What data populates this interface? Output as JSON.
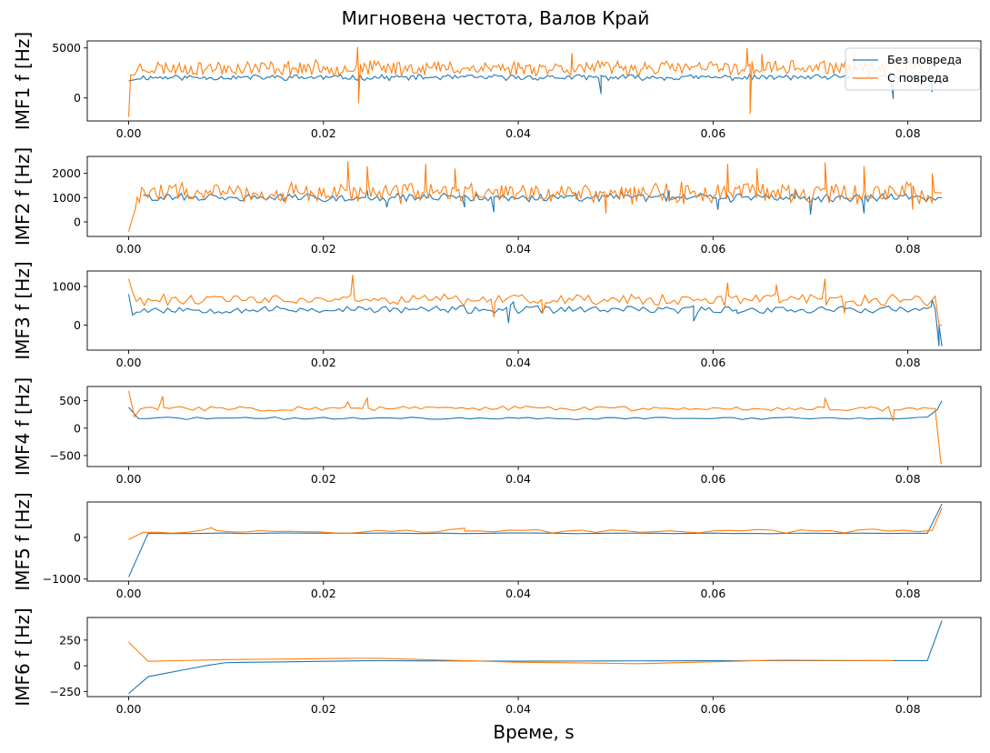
{
  "figure": {
    "title": "Мигновена честота, Валов Край",
    "xlabel": "Време, s",
    "legend": {
      "placement": "top-right",
      "entries": [
        "Без повреда",
        "С повреда"
      ]
    },
    "colors": {
      "series_a": "#1f77b4",
      "series_b": "#ff7f0e"
    }
  },
  "chart_data": [
    {
      "type": "line",
      "ylabel": "IMF1 f [Hz]",
      "xlim": [
        -0.00425,
        0.0875
      ],
      "ylim": [
        -2300,
        5700
      ],
      "xticks": [
        "0.00",
        "0.02",
        "0.04",
        "0.06",
        "0.08"
      ],
      "yticks": [
        0,
        5000
      ],
      "series": [
        {
          "name": "Без повреда",
          "base": 2050,
          "noise": 250,
          "seed": 11,
          "step": 0.00025,
          "points": [
            [
              0,
              1700
            ],
            [
              0.001,
              1900
            ],
            [
              0.0835,
              2000
            ]
          ],
          "spikes": [
            [
              0.0485,
              400
            ],
            [
              0.0785,
              -100
            ],
            [
              0.0825,
              600
            ]
          ]
        },
        {
          "name": "С повреда",
          "base": 3000,
          "noise": 650,
          "seed": 23,
          "step": 0.0002,
          "points": [
            [
              0,
              -1900
            ],
            [
              0.0001,
              2300
            ],
            [
              0.0835,
              2600
            ]
          ],
          "spikes": [
            [
              0.0235,
              5100
            ],
            [
              0.0236,
              -500
            ],
            [
              0.0455,
              4500
            ],
            [
              0.0635,
              5000
            ],
            [
              0.0638,
              -1600
            ],
            [
              0.065,
              4400
            ],
            [
              0.0745,
              4600
            ],
            [
              0.078,
              4000
            ]
          ]
        }
      ]
    },
    {
      "type": "line",
      "ylabel": "IMF2 f [Hz]",
      "xlim": [
        -0.00425,
        0.0875
      ],
      "ylim": [
        -600,
        2700
      ],
      "xticks": [
        "0.00",
        "0.02",
        "0.04",
        "0.06",
        "0.08"
      ],
      "yticks": [
        0,
        1000,
        2000
      ],
      "series": [
        {
          "name": "Без повреда",
          "base": 1000,
          "noise": 150,
          "seed": 31,
          "step": 0.0003,
          "start": 0.0015,
          "points": [
            [
              0.0015,
              1100
            ],
            [
              0.0835,
              1000
            ]
          ],
          "spikes": [
            [
              0.0245,
              1300
            ],
            [
              0.0265,
              600
            ],
            [
              0.0345,
              600
            ],
            [
              0.0375,
              400
            ],
            [
              0.0505,
              1300
            ],
            [
              0.0555,
              1300
            ],
            [
              0.0605,
              500
            ],
            [
              0.0685,
              1300
            ],
            [
              0.07,
              300
            ],
            [
              0.0755,
              350
            ]
          ]
        },
        {
          "name": "С повреда",
          "base": 1200,
          "noise": 380,
          "seed": 47,
          "step": 0.00022,
          "points": [
            [
              0,
              -400
            ],
            [
              0.0005,
              300
            ],
            [
              0.0015,
              1400
            ],
            [
              0.0835,
              1200
            ]
          ],
          "spikes": [
            [
              0.0225,
              2500
            ],
            [
              0.0245,
              2300
            ],
            [
              0.0305,
              2400
            ],
            [
              0.0335,
              2200
            ],
            [
              0.0615,
              2400
            ],
            [
              0.0645,
              2200
            ],
            [
              0.0715,
              2450
            ],
            [
              0.0755,
              2300
            ],
            [
              0.0825,
              2000
            ],
            [
              0.0805,
              500
            ],
            [
              0.049,
              350
            ]
          ]
        }
      ]
    },
    {
      "type": "line",
      "ylabel": "IMF3 f [Hz]",
      "xlim": [
        -0.00425,
        0.0875
      ],
      "ylim": [
        -650,
        1400
      ],
      "xticks": [
        "0.00",
        "0.02",
        "0.04",
        "0.06",
        "0.08"
      ],
      "yticks": [
        0,
        1000
      ],
      "series": [
        {
          "name": "Без повреда",
          "base": 400,
          "noise": 90,
          "seed": 53,
          "step": 0.0004,
          "points": [
            [
              0,
              800
            ],
            [
              0.0003,
              250
            ],
            [
              0.003,
              500
            ],
            [
              0.0835,
              -550
            ]
          ],
          "spikes": [
            [
              0.039,
              50
            ],
            [
              0.0395,
              600
            ],
            [
              0.058,
              100
            ],
            [
              0.0625,
              300
            ],
            [
              0.0825,
              650
            ],
            [
              0.0832,
              0
            ]
          ]
        },
        {
          "name": "С повреда",
          "base": 650,
          "noise": 130,
          "seed": 61,
          "step": 0.0004,
          "points": [
            [
              0,
              1200
            ],
            [
              0.0003,
              850
            ],
            [
              0.0835,
              0
            ]
          ],
          "spikes": [
            [
              0.023,
              1300
            ],
            [
              0.0285,
              600
            ],
            [
              0.0375,
              200
            ],
            [
              0.0425,
              300
            ],
            [
              0.0615,
              1100
            ],
            [
              0.0665,
              1050
            ],
            [
              0.0715,
              1200
            ],
            [
              0.0735,
              300
            ]
          ]
        }
      ]
    },
    {
      "type": "line",
      "ylabel": "IMF4 f [Hz]",
      "xlim": [
        -0.00425,
        0.0875
      ],
      "ylim": [
        -700,
        760
      ],
      "xticks": [
        "0.00",
        "0.02",
        "0.04",
        "0.06",
        "0.08"
      ],
      "yticks": [
        -500,
        0,
        500
      ],
      "series": [
        {
          "name": "Без повреда",
          "base": 180,
          "noise": 20,
          "seed": 71,
          "step": 0.001,
          "points": [
            [
              0,
              380
            ],
            [
              0.0005,
              100
            ],
            [
              0.0065,
              240
            ],
            [
              0.0125,
              90
            ],
            [
              0.0175,
              290
            ],
            [
              0.0275,
              110
            ],
            [
              0.0425,
              150
            ],
            [
              0.0655,
              250
            ],
            [
              0.0745,
              150
            ],
            [
              0.0825,
              170
            ],
            [
              0.0835,
              500
            ]
          ],
          "spikes": []
        },
        {
          "name": "С повреда",
          "base": 360,
          "noise": 40,
          "seed": 83,
          "step": 0.0006,
          "points": [
            [
              0,
              680
            ],
            [
              0.0003,
              220
            ],
            [
              0.0015,
              170
            ],
            [
              0.0835,
              -650
            ]
          ],
          "spikes": [
            [
              0.0035,
              580
            ],
            [
              0.0225,
              480
            ],
            [
              0.0245,
              550
            ],
            [
              0.0715,
              540
            ],
            [
              0.0755,
              380
            ],
            [
              0.0785,
              130
            ]
          ]
        }
      ]
    },
    {
      "type": "line",
      "ylabel": "IMF5 f [Hz]",
      "xlim": [
        -0.00425,
        0.0875
      ],
      "ylim": [
        -1050,
        850
      ],
      "xticks": [
        "0.00",
        "0.02",
        "0.04",
        "0.06",
        "0.08"
      ],
      "yticks": [
        -1000,
        0
      ],
      "series": [
        {
          "name": "Без повреда",
          "base": 100,
          "noise": 8,
          "seed": 91,
          "step": 0.002,
          "points": [
            [
              0,
              -950
            ],
            [
              0.004,
              60
            ],
            [
              0.02,
              110
            ],
            [
              0.0825,
              120
            ],
            [
              0.0835,
              800
            ]
          ],
          "spikes": []
        },
        {
          "name": "С повреда",
          "base": 150,
          "noise": 40,
          "seed": 97,
          "step": 0.0015,
          "points": [
            [
              0,
              -50
            ],
            [
              0.006,
              100
            ],
            [
              0.0415,
              40
            ],
            [
              0.0565,
              70
            ],
            [
              0.0645,
              170
            ],
            [
              0.0825,
              150
            ],
            [
              0.0835,
              700
            ]
          ],
          "spikes": [
            [
              0.0345,
              220
            ],
            [
              0.0085,
              230
            ]
          ]
        }
      ]
    },
    {
      "type": "line",
      "ylabel": "IMF6 f [Hz]",
      "xlim": [
        -0.00425,
        0.0875
      ],
      "ylim": [
        -300,
        470
      ],
      "xticks": [
        "0.00",
        "0.02",
        "0.04",
        "0.06",
        "0.08"
      ],
      "yticks": [
        -250,
        0,
        250
      ],
      "series": [
        {
          "name": "Без повреда",
          "base": 40,
          "noise": 0,
          "seed": 101,
          "step": 0.002,
          "points": [
            [
              0,
              -270
            ],
            [
              0.0001,
              -140
            ],
            [
              0.0095,
              30
            ],
            [
              0.025,
              50
            ],
            [
              0.04,
              45
            ],
            [
              0.065,
              50
            ],
            [
              0.082,
              50
            ],
            [
              0.083,
              100
            ],
            [
              0.0835,
              440
            ]
          ],
          "spikes": []
        },
        {
          "name": "С повреда",
          "base": 50,
          "noise": 0,
          "seed": 103,
          "step": 0.002,
          "points": [
            [
              0,
              230
            ],
            [
              0.0003,
              40
            ],
            [
              0.01,
              60
            ],
            [
              0.025,
              75
            ],
            [
              0.04,
              35
            ],
            [
              0.0525,
              20
            ],
            [
              0.0665,
              55
            ],
            [
              0.0785,
              50
            ]
          ],
          "spikes": []
        }
      ]
    }
  ]
}
